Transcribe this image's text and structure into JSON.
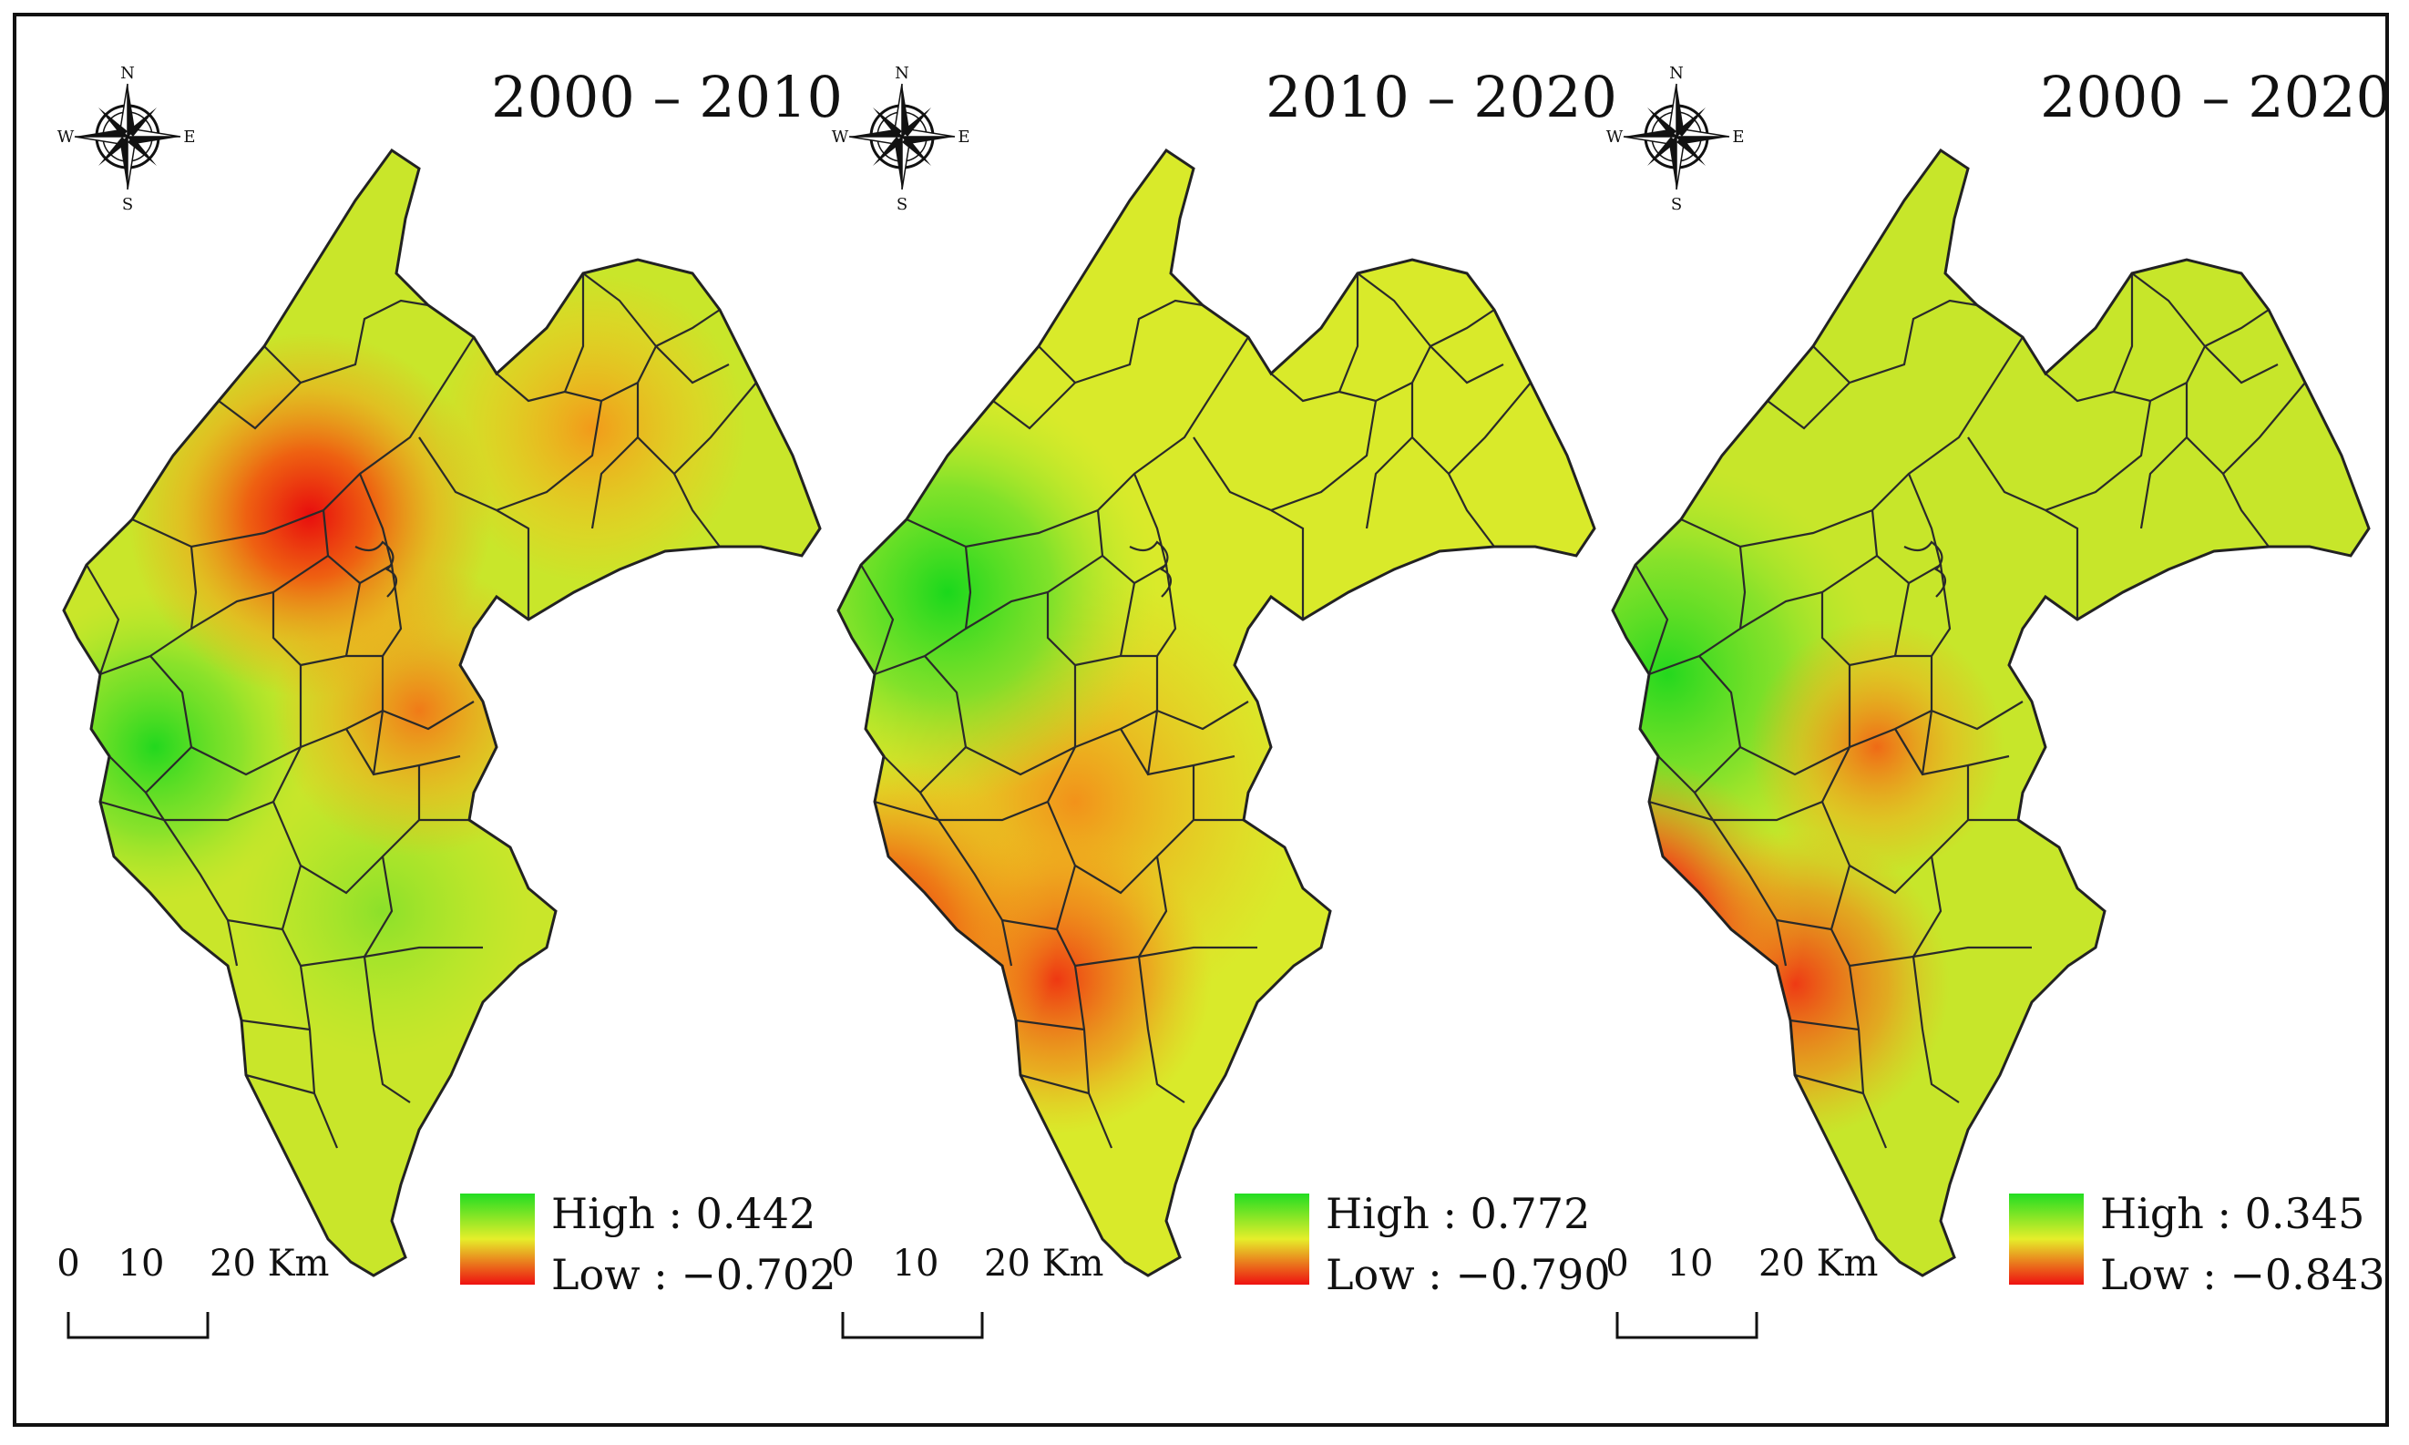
{
  "figure": {
    "panels": [
      {
        "id": "2000-2010",
        "title": "2000 – 2010",
        "legend": {
          "high_label": "High : 0.442",
          "low_label": "Low : −0.702",
          "high_color": "#22dd22",
          "low_color": "#ee1111"
        },
        "hotspots": "north-red-southwest-green"
      },
      {
        "id": "2010-2020",
        "title": "2010 – 2020",
        "legend": {
          "high_label": "High : 0.772",
          "low_label": "Low : −0.790",
          "high_color": "#22dd22",
          "low_color": "#ee1111"
        },
        "hotspots": "northwest-green-south-red"
      },
      {
        "id": "2000-2020",
        "title": "2000 – 2020",
        "legend": {
          "high_label": "High : 0.345",
          "low_label": "Low : −0.843",
          "high_color": "#22dd22",
          "low_color": "#ee1111"
        },
        "hotspots": "west-green-southwest-red"
      }
    ],
    "compass": {
      "n": "N",
      "s": "S",
      "e": "E",
      "w": "W"
    },
    "scale_bar": {
      "labels": [
        "0",
        "10",
        "20 Km"
      ]
    },
    "colors": {
      "green": "#2fe02f",
      "yellow": "#e8ee2a",
      "orange": "#f29a1a",
      "red": "#ee1a0f",
      "ygreen": "#a6e82a"
    }
  }
}
